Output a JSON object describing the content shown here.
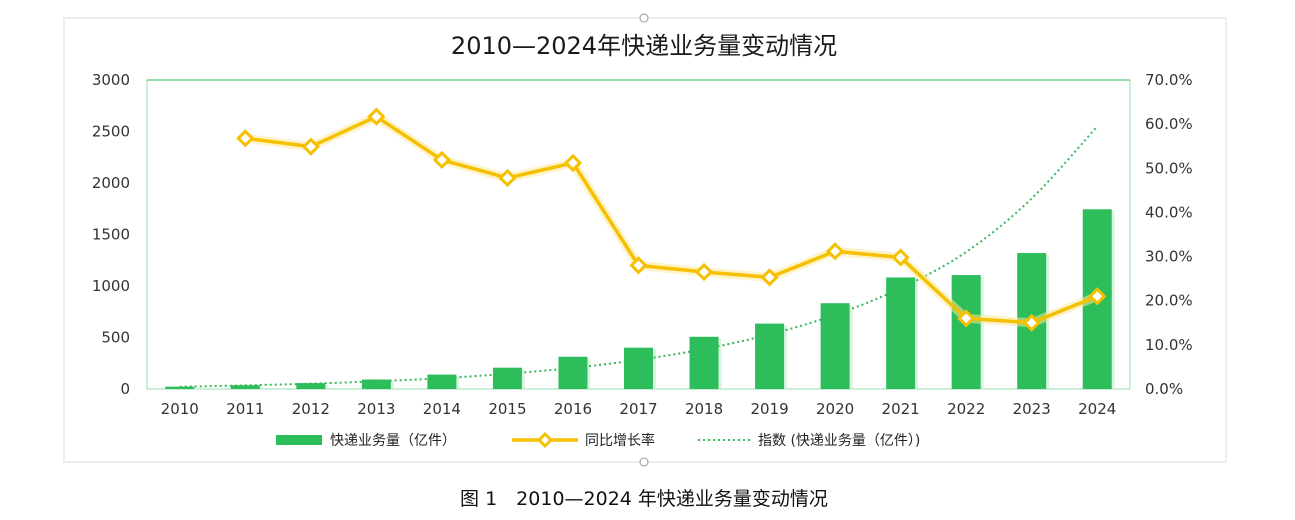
{
  "chart_data": {
    "type": "bar",
    "title": "2010—2024年快递业务量变动情况",
    "caption": "图 1　2010—2024 年快递业务量变动情况",
    "categories": [
      "2010",
      "2011",
      "2012",
      "2013",
      "2014",
      "2015",
      "2016",
      "2017",
      "2018",
      "2019",
      "2020",
      "2021",
      "2022",
      "2023",
      "2024"
    ],
    "y_left": {
      "range": [
        0,
        3000
      ],
      "ticks": [
        "0",
        "500",
        "1000",
        "1500",
        "2000",
        "2500",
        "3000"
      ]
    },
    "y_right": {
      "range": [
        0,
        0.7
      ],
      "ticks": [
        "0.0%",
        "10.0%",
        "20.0%",
        "30.0%",
        "40.0%",
        "50.0%",
        "60.0%",
        "70.0%"
      ]
    },
    "legend_position": "bottom",
    "series": [
      {
        "name": "快递业务量（亿件）",
        "type": "bar",
        "axis": "left",
        "color": "#2dbd5a",
        "values": [
          23,
          37,
          57,
          92,
          140,
          207,
          313,
          401,
          507,
          635,
          833,
          1083,
          1106,
          1320,
          1745
        ]
      },
      {
        "name": "同比增长率",
        "type": "line",
        "axis": "right",
        "color": "#f5c000",
        "values": [
          null,
          0.568,
          0.549,
          0.617,
          0.519,
          0.478,
          0.512,
          0.28,
          0.265,
          0.253,
          0.312,
          0.298,
          0.16,
          0.15,
          0.21
        ]
      },
      {
        "name": "指数 (快递业务量（亿件）)",
        "type": "line-dotted",
        "axis": "left",
        "color": "#33b85a",
        "values": [
          22,
          35,
          52,
          75,
          105,
          148,
          205,
          283,
          388,
          530,
          720,
          980,
          1330,
          1850,
          2550
        ]
      }
    ]
  }
}
